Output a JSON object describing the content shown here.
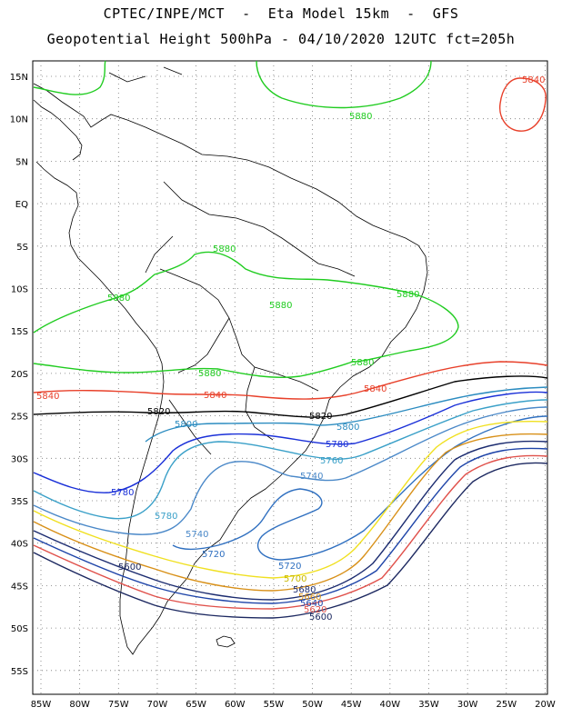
{
  "header": {
    "line1": "CPTEC/INPE/MCT  -  Eta Model 15km  -  GFS",
    "line2": "Geopotential Height 500hPa - 04/10/2020 12UTC fct=205h"
  },
  "axes": {
    "lat_labels": [
      "15N",
      "10N",
      "5N",
      "EQ",
      "5S",
      "10S",
      "15S",
      "20S",
      "25S",
      "30S",
      "35S",
      "40S",
      "45S",
      "50S",
      "55S"
    ],
    "lon_labels": [
      "85W",
      "80W",
      "75W",
      "70W",
      "65W",
      "60W",
      "55W",
      "50W",
      "45W",
      "40W",
      "35W",
      "30W",
      "25W",
      "20W"
    ],
    "grid": true
  },
  "colors": {
    "c5880": "#20cc20",
    "c5840": "#e8402a",
    "c5820": "#000000",
    "c5800": "#2c8cc0",
    "c5780": "#1a30d8",
    "c5760": "#3aa0c8",
    "c5740": "#4a88c8",
    "c5720": "#3070c0",
    "c5700": "#f0e020",
    "c5680": "#d89018",
    "c5660": "#1c2c70",
    "c5640": "#1e44a8",
    "c5620": "#e0504a",
    "c5600": "#1c2860",
    "coast": "#000000"
  },
  "contour_labels": {
    "l5880_a": "5880",
    "l5880_b": "5880",
    "l5880_c": "5880",
    "l5880_d": "5880",
    "l5880_e": "5880",
    "l5880_f": "5880",
    "l5880_g": "5880",
    "l5840_a": "5840",
    "l5840_b": "5840",
    "l5840_c": "5840",
    "l5840_d": "5840",
    "l5820_a": "5820",
    "l5820_b": "5820",
    "l5800_a": "5800",
    "l5800_b": "5800",
    "l5780_a": "5780",
    "l5780_b": "5780",
    "l5780_c": "5780",
    "l5760_a": "5760",
    "l5740_a": "5740",
    "l5740_b": "5740",
    "l5720_a": "5720",
    "l5720_b": "5720",
    "l5700_a": "5700",
    "l5680_a": "5680",
    "l5660_a": "5660",
    "l5640_a": "5640",
    "l5620_a": "5620",
    "l5600_a": "5600",
    "l5600_b": "5600"
  }
}
